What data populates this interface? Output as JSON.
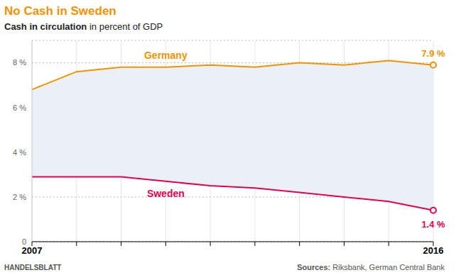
{
  "chart_data": {
    "type": "line",
    "title": "No Cash in Sweden",
    "subtitle": "Cash in circulation in percent of GDP",
    "source": "Sources: Riksbank, German Central Bank",
    "credit": "HANDELSBLATT",
    "categories": [
      "2007",
      null,
      null,
      null,
      null,
      null,
      null,
      null,
      null,
      "2016"
    ],
    "series": [
      {
        "name": "Germany",
        "color": "#f39200",
        "marker": "circle",
        "values": [
          6.8,
          7.6,
          7.8,
          7.8,
          7.9,
          7.8,
          8.0,
          7.9,
          8.1,
          7.9
        ],
        "value_labels": [
          null,
          null,
          null,
          null,
          null,
          null,
          null,
          null,
          null,
          "7.9 %"
        ]
      },
      {
        "name": "Sweden",
        "color": "#e5004f",
        "marker": "circle",
        "values": [
          2.9,
          2.9,
          2.9,
          2.7,
          2.5,
          2.4,
          2.2,
          2.0,
          1.8,
          1.4
        ],
        "value_labels": [
          null,
          null,
          null,
          null,
          null,
          null,
          null,
          null,
          null,
          "1.4 %"
        ]
      }
    ],
    "ylim": [
      0,
      9
    ],
    "yticks": [
      0,
      {
        "value": 2,
        "label": "2 %"
      },
      {
        "value": 4,
        "label": "4 %"
      },
      {
        "value": 6,
        "label": "6 %"
      },
      {
        "value": 8,
        "label": "8 %"
      }
    ],
    "grid": true
  }
}
